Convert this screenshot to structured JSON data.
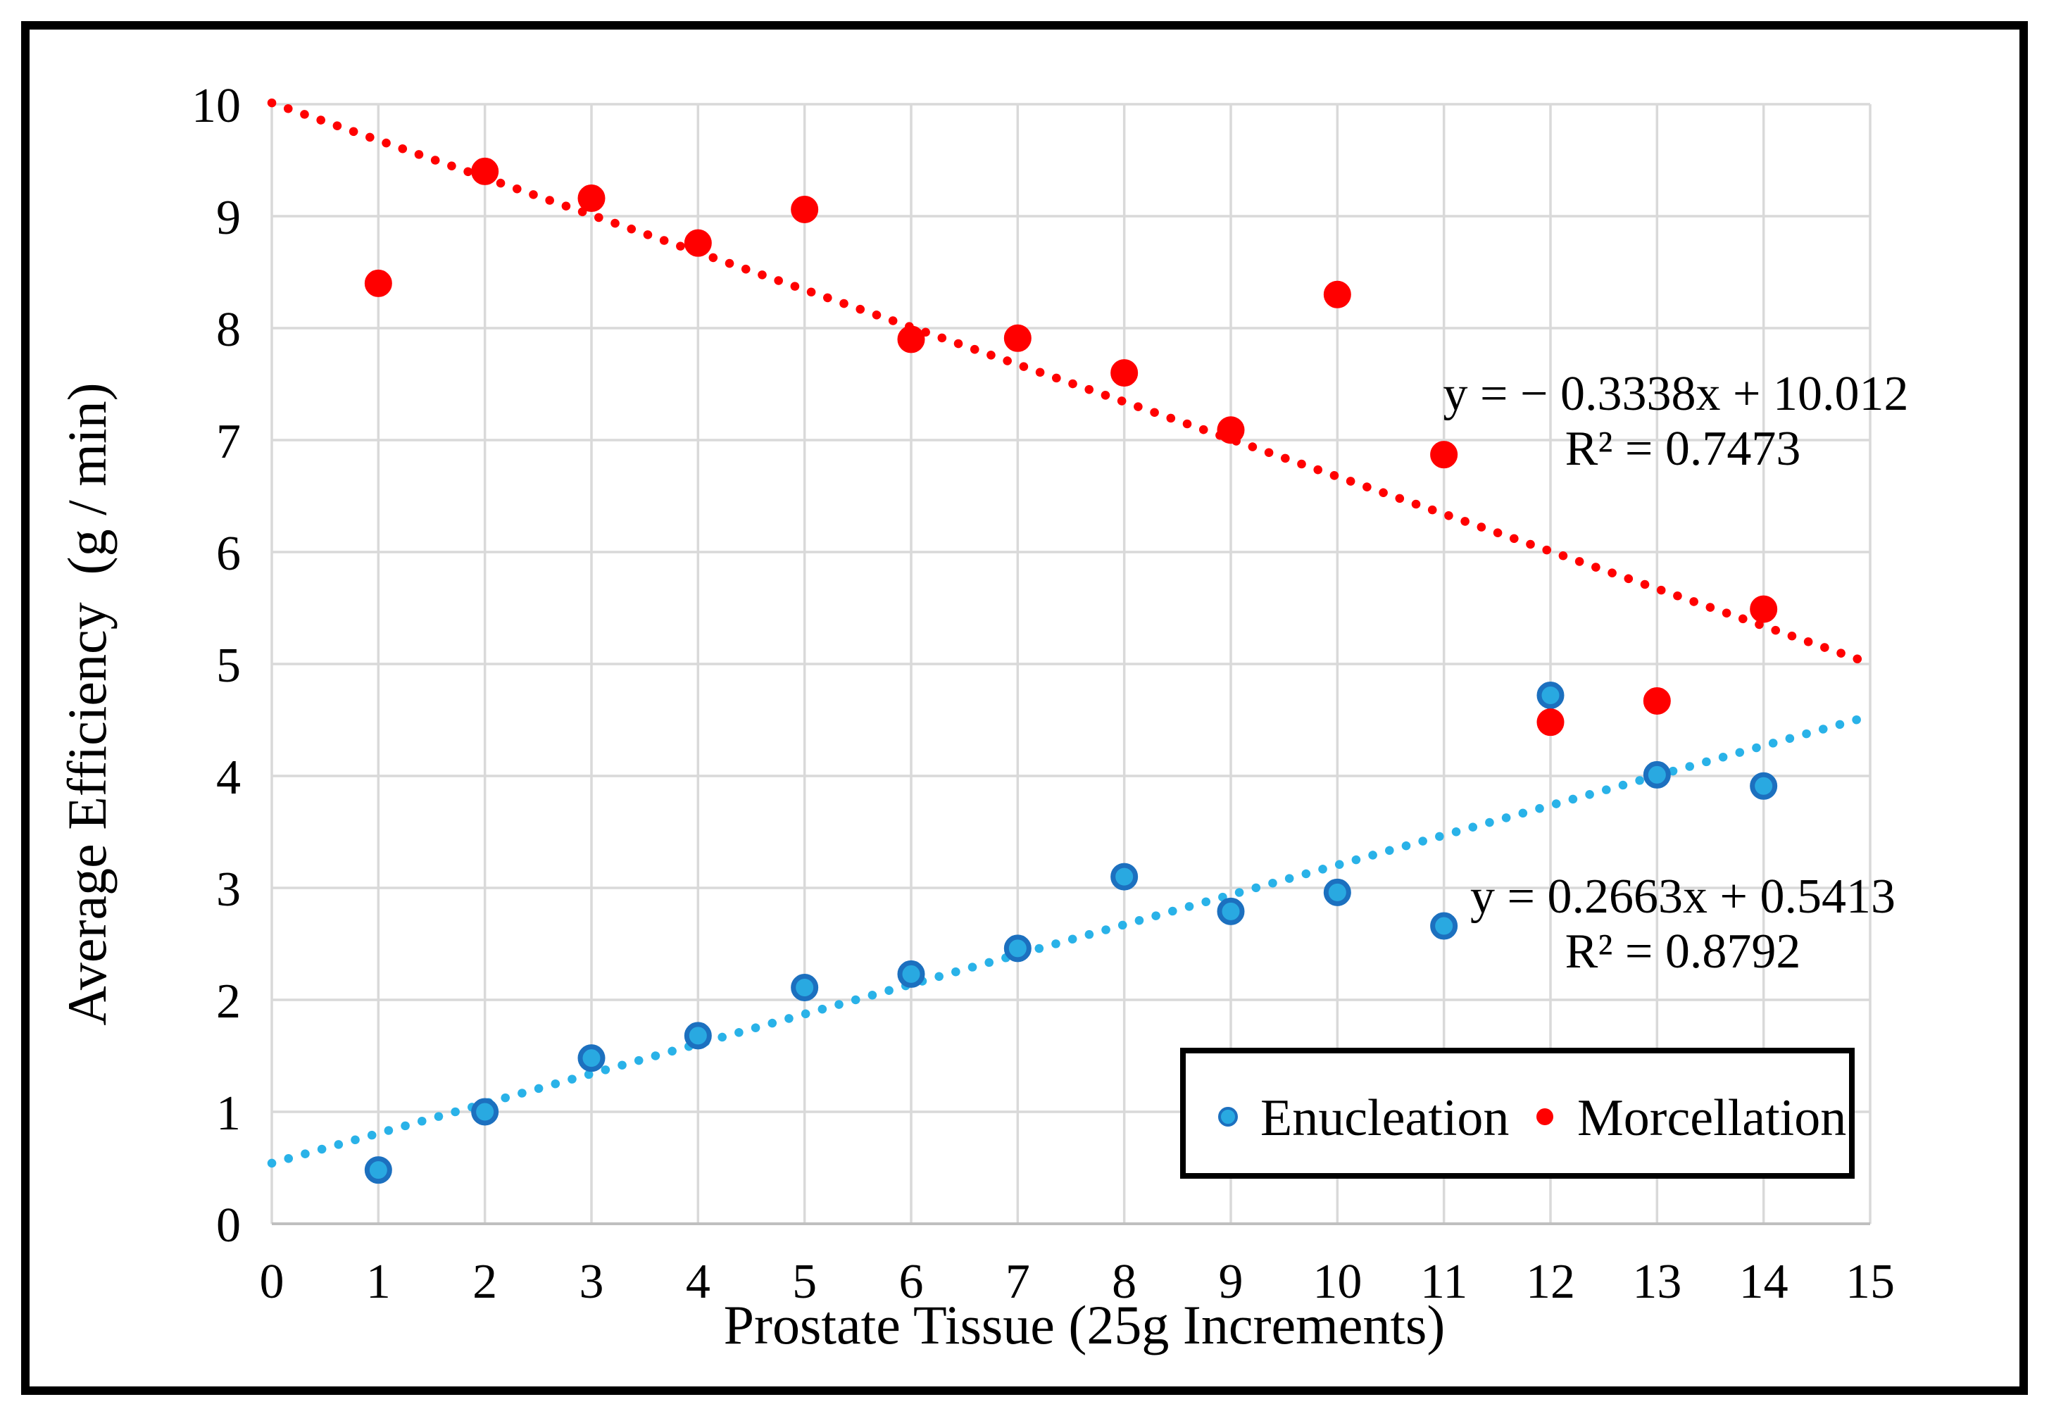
{
  "figure": {
    "background": "#FFFFFF",
    "border_color": "#000000",
    "gridline_color": "#D9D9D9",
    "axis_line_color": "#BFBFBF"
  },
  "chart_data": {
    "type": "scatter",
    "title": "",
    "xlabel": "Prostate Tissue (25g Increments)",
    "ylabel": "Average Efficiency  (g / min)",
    "xlim": [
      0,
      15
    ],
    "ylim": [
      0,
      10
    ],
    "x_ticks": [
      0,
      1,
      2,
      3,
      4,
      5,
      6,
      7,
      8,
      9,
      10,
      11,
      12,
      13,
      14,
      15
    ],
    "y_ticks": [
      0,
      1,
      2,
      3,
      4,
      5,
      6,
      7,
      8,
      9,
      10
    ],
    "grid": true,
    "x": [
      1,
      2,
      3,
      4,
      5,
      6,
      7,
      8,
      9,
      10,
      11,
      12,
      13,
      14
    ],
    "series": [
      {
        "name": "Enucleation",
        "marker_fill": "#29A9E1",
        "marker_ring": "#1C70BF",
        "values": [
          0.48,
          1.0,
          1.48,
          1.68,
          2.11,
          2.23,
          2.46,
          3.1,
          2.79,
          2.96,
          2.66,
          4.72,
          4.01,
          3.91
        ]
      },
      {
        "name": "Morcellation",
        "marker_fill": "#FF0000",
        "marker_ring": "#FF0000",
        "values": [
          8.4,
          9.4,
          9.16,
          8.76,
          9.06,
          7.9,
          7.91,
          7.6,
          7.09,
          8.3,
          6.87,
          4.48,
          4.67,
          5.49
        ]
      }
    ],
    "trendlines": [
      {
        "series": "Enucleation",
        "color": "#29B2E8",
        "slope": 0.2663,
        "intercept": 0.5413,
        "x_range": [
          0,
          15
        ],
        "equation": "y = 0.2663x + 0.5413",
        "r_squared": "R² = 0.8792"
      },
      {
        "series": "Morcellation",
        "color": "#FF0000",
        "slope": -0.3338,
        "intercept": 10.012,
        "x_range": [
          0,
          15
        ],
        "equation": "y = − 0.3338x + 10.012",
        "r_squared": "R² = 0.7473"
      }
    ],
    "legend": {
      "position": "inside-bottom-right",
      "items": [
        "Enucleation",
        "Morcellation"
      ]
    }
  }
}
